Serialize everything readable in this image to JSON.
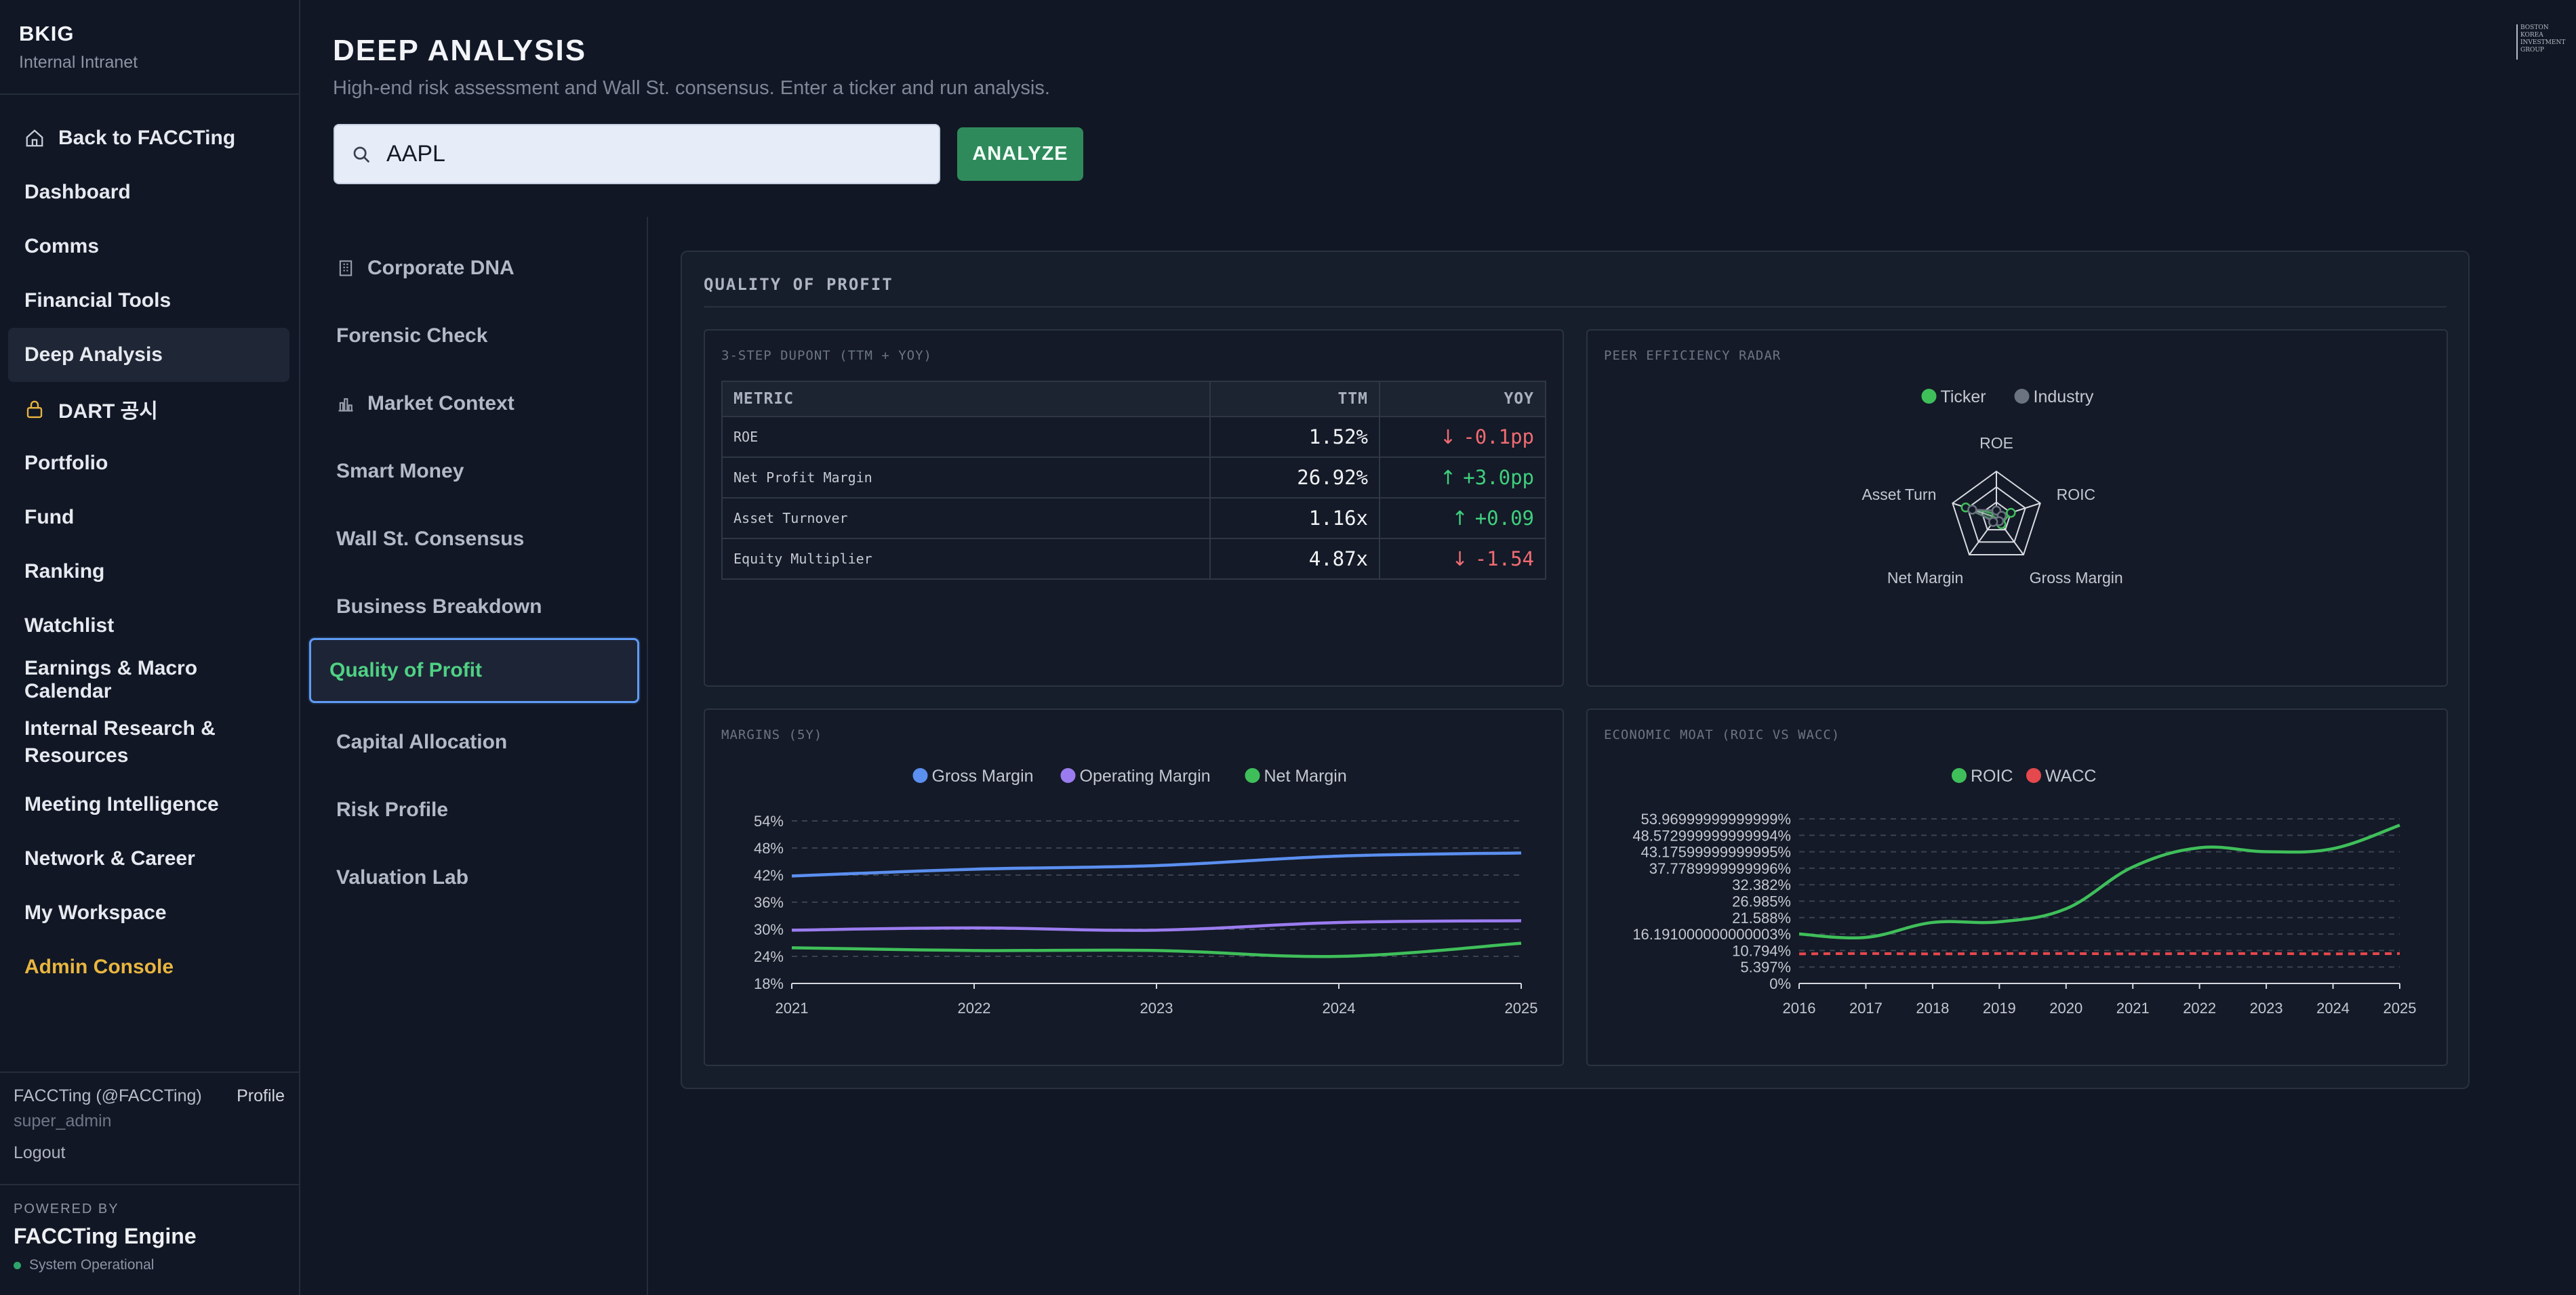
{
  "sidebar": {
    "brand": "BKIG",
    "brand_sub": "Internal Intranet",
    "items": [
      {
        "label": "Back to FACCTing",
        "icon": "home-icon"
      },
      {
        "label": "Dashboard"
      },
      {
        "label": "Comms"
      },
      {
        "label": "Financial Tools"
      },
      {
        "label": "Deep Analysis",
        "active": true
      },
      {
        "label": "DART 공시",
        "icon": "lock-icon"
      },
      {
        "label": "Portfolio"
      },
      {
        "label": "Fund"
      },
      {
        "label": "Ranking"
      },
      {
        "label": "Watchlist"
      },
      {
        "label": "Earnings & Macro Calendar"
      },
      {
        "label": "Internal Research & Resources"
      },
      {
        "label": "Meeting Intelligence"
      },
      {
        "label": "Network & Career"
      },
      {
        "label": "My Workspace"
      },
      {
        "label": "Admin Console"
      }
    ],
    "user": {
      "name": "FACCTing (@FACCTing)",
      "profile_label": "Profile",
      "role": "super_admin",
      "logout_label": "Logout"
    },
    "powered_by": {
      "label": "POWERED BY",
      "engine": "FACCTing Engine",
      "status": "System Operational",
      "status_color": "#2fa36b"
    }
  },
  "header": {
    "title": "DEEP ANALYSIS",
    "subtitle": "High-end risk assessment and Wall St. consensus. Enter a ticker and run analysis.",
    "search_value": "AAPL",
    "analyze_label": "ANALYZE"
  },
  "corner_logo": {
    "lines": [
      "BOSTON",
      "KOREA",
      "INVESTMENT",
      "GROUP"
    ]
  },
  "subnav": {
    "items": [
      {
        "label": "Corporate DNA",
        "icon": "building-icon"
      },
      {
        "label": "Forensic Check"
      },
      {
        "label": "Market Context",
        "icon": "bar-chart-icon"
      },
      {
        "label": "Smart Money"
      },
      {
        "label": "Wall St. Consensus"
      },
      {
        "label": "Business Breakdown"
      },
      {
        "label": "Quality of Profit",
        "active": true
      },
      {
        "label": "Capital Allocation"
      },
      {
        "label": "Risk Profile"
      },
      {
        "label": "Valuation Lab"
      }
    ]
  },
  "panel": {
    "title": "QUALITY OF PROFIT",
    "dupont": {
      "title": "3-STEP DUPONT (TTM + YOY)",
      "headers": [
        "METRIC",
        "TTM",
        "YOY"
      ],
      "rows": [
        {
          "metric": "ROE",
          "ttm": "1.52%",
          "yoy": "-0.1pp",
          "dir": "down"
        },
        {
          "metric": "Net Profit Margin",
          "ttm": "26.92%",
          "yoy": "+3.0pp",
          "dir": "up"
        },
        {
          "metric": "Asset Turnover",
          "ttm": "1.16x",
          "yoy": "+0.09",
          "dir": "up"
        },
        {
          "metric": "Equity Multiplier",
          "ttm": "4.87x",
          "yoy": "-1.54",
          "dir": "down"
        }
      ]
    },
    "radar_title": "PEER EFFICIENCY RADAR",
    "margins_title": "MARGINS (5Y)",
    "moat_title": "ECONOMIC MOAT (ROIC VS WACC)"
  },
  "chart_data": [
    {
      "type": "radar",
      "title": "PEER EFFICIENCY RADAR",
      "axes": [
        "ROE",
        "ROIC",
        "Gross Margin",
        "Net Margin",
        "Asset Turn"
      ],
      "series": [
        {
          "name": "Ticker",
          "color": "#3fbf5a",
          "values": [
            0.08,
            0.33,
            0.18,
            0.1,
            0.7
          ]
        },
        {
          "name": "Industry",
          "color": "#6b7280",
          "values": [
            0.15,
            0.12,
            0.1,
            0.12,
            0.55
          ]
        }
      ]
    },
    {
      "type": "line",
      "title": "MARGINS (5Y)",
      "x": [
        "2021",
        "2022",
        "2023",
        "2024",
        "2025"
      ],
      "yticks": [
        "54%",
        "48%",
        "42%",
        "36%",
        "30%",
        "24%",
        "18%"
      ],
      "ylim": [
        18,
        54
      ],
      "series": [
        {
          "name": "Gross Margin",
          "color": "#5b8ff0",
          "values": [
            41.8,
            43.3,
            44.1,
            46.2,
            46.9
          ]
        },
        {
          "name": "Operating Margin",
          "color": "#9b7cf0",
          "values": [
            29.8,
            30.3,
            29.8,
            31.5,
            31.9
          ]
        },
        {
          "name": "Net Margin",
          "color": "#3fbf5a",
          "values": [
            25.9,
            25.3,
            25.3,
            24.0,
            26.9
          ]
        }
      ]
    },
    {
      "type": "line",
      "title": "ECONOMIC MOAT (ROIC VS WACC)",
      "x": [
        "2016",
        "2017",
        "2018",
        "2019",
        "2020",
        "2021",
        "2022",
        "2023",
        "2024",
        "2025"
      ],
      "yticks": [
        "53.96999999999999%",
        "48.572999999999994%",
        "43.17599999999995%",
        "37.7789999999996%",
        "32.382%",
        "26.985%",
        "21.588%",
        "16.191000000000003%",
        "10.794%",
        "5.397%",
        "0%"
      ],
      "ylim": [
        0,
        53.97
      ],
      "series": [
        {
          "name": "ROIC",
          "color": "#3fbf5a",
          "values": [
            16.2,
            15.1,
            20.0,
            20.2,
            24.5,
            38.2,
            44.5,
            43.2,
            44.2,
            51.9
          ]
        },
        {
          "name": "WACC",
          "color": "#e5484d",
          "dashed": true,
          "values": [
            9.7,
            9.8,
            9.7,
            9.8,
            9.8,
            9.7,
            9.8,
            9.8,
            9.7,
            9.8
          ]
        }
      ]
    }
  ]
}
